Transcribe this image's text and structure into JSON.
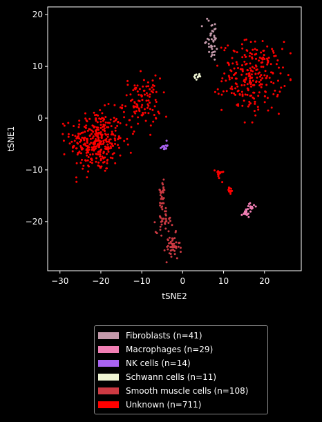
{
  "chart_data": {
    "type": "scatter",
    "xlabel": "tSNE2",
    "ylabel": "tSNE1",
    "xlim": [
      -33,
      29
    ],
    "ylim": [
      -29.5,
      21.5
    ],
    "x_ticks": [
      -30,
      -20,
      -10,
      0,
      10,
      20
    ],
    "y_ticks": [
      -20,
      -10,
      0,
      10,
      20
    ],
    "grid": false,
    "legend_position": "below",
    "series": [
      {
        "name": "Fibroblasts (n=41)",
        "color": "#c49aab",
        "count": 41,
        "clusters": [
          {
            "cx": 7,
            "cy": 16,
            "sx": 0.9,
            "sy": 1.8,
            "n": 28
          },
          {
            "cx": 7,
            "cy": 13.5,
            "sx": 0.8,
            "sy": 1.0,
            "n": 13
          }
        ]
      },
      {
        "name": "Macrophages (n=29)",
        "color": "#f17fb4",
        "count": 29,
        "clusters": [
          {
            "cx": 15.5,
            "cy": -18.3,
            "sx": 0.5,
            "sy": 0.4,
            "n": 19
          },
          {
            "cx": 17,
            "cy": -17,
            "sx": 0.5,
            "sy": 0.5,
            "n": 10
          }
        ]
      },
      {
        "name": "NK cells (n=14)",
        "color": "#a963f2",
        "count": 14,
        "clusters": [
          {
            "cx": -4.5,
            "cy": -5.4,
            "sx": 0.35,
            "sy": 0.4,
            "n": 14
          }
        ]
      },
      {
        "name": "Schwann cells (n=11)",
        "color": "#eef3d2",
        "count": 11,
        "clusters": [
          {
            "cx": 3.8,
            "cy": 8.1,
            "sx": 0.6,
            "sy": 0.3,
            "n": 11
          }
        ]
      },
      {
        "name": "Smooth muscle cells (n=108)",
        "color": "#cd3a43",
        "count": 108,
        "clusters": [
          {
            "cx": -5,
            "cy": -14.5,
            "sx": 0.5,
            "sy": 1.2,
            "n": 22
          },
          {
            "cx": -4.5,
            "cy": -19.5,
            "sx": 1.0,
            "sy": 1.3,
            "n": 40
          },
          {
            "cx": -2.5,
            "cy": -25,
            "sx": 0.9,
            "sy": 1.3,
            "n": 46
          }
        ]
      },
      {
        "name": "Unknown (n=711)",
        "color": "#ff0000",
        "count": 711,
        "clusters": [
          {
            "cx": -21,
            "cy": -4.5,
            "sx": 3.2,
            "sy": 3.0,
            "n": 330
          },
          {
            "cx": -10,
            "cy": 3,
            "sx": 2.3,
            "sy": 2.4,
            "n": 110
          },
          {
            "cx": 17,
            "cy": 8,
            "sx": 3.6,
            "sy": 3.4,
            "n": 245
          },
          {
            "cx": 9,
            "cy": -10.8,
            "sx": 0.5,
            "sy": 0.6,
            "n": 14
          },
          {
            "cx": 11.5,
            "cy": -14,
            "sx": 0.4,
            "sy": 0.4,
            "n": 12
          }
        ]
      }
    ]
  }
}
